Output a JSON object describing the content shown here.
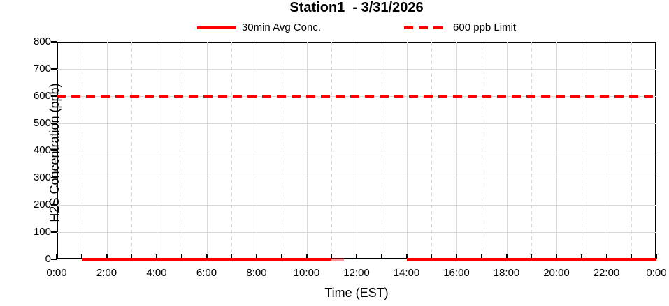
{
  "chart_data": {
    "type": "line",
    "title": "Station1  - 3/31/2026",
    "xlabel": "Time (EST)",
    "ylabel": "H2S Concentration (ppb)",
    "ylim": [
      0,
      800
    ],
    "y_tick_step": 100,
    "y_tick_labels": [
      "800",
      "700",
      "600",
      "500",
      "400",
      "300",
      "200",
      "100",
      "0"
    ],
    "xlim_hours": [
      0,
      24
    ],
    "x_tick_step_hours": 2,
    "x_tick_labels": [
      "0:00",
      "2:00",
      "4:00",
      "6:00",
      "8:00",
      "10:00",
      "12:00",
      "14:00",
      "16:00",
      "18:00",
      "20:00",
      "22:00",
      "0:00"
    ],
    "grid": {
      "horizontal_major": "solid every 100 ppb",
      "vertical_even_hours": "solid",
      "vertical_odd_hours": "dashed",
      "gridline_color": "#d9d9d9"
    },
    "legend": [
      {
        "label": "30min Avg Conc.",
        "style": "solid",
        "color": "#ff0000"
      },
      {
        "label": "600 ppb Limit",
        "style": "dashed",
        "color": "#ff0000"
      }
    ],
    "series": [
      {
        "name": "30min Avg Conc.",
        "color": "#ff0000",
        "style": "solid",
        "value_ppb": 0,
        "segments_hours": [
          {
            "start_hour": 1,
            "end_hour": 11,
            "appearance": "normal"
          },
          {
            "start_hour": 11,
            "end_hour": 11.5,
            "appearance": "faded"
          },
          {
            "start_hour": 14,
            "end_hour": 24,
            "appearance": "normal"
          }
        ]
      },
      {
        "name": "600 ppb Limit",
        "color": "#ff0000",
        "style": "dashed",
        "value_ppb": 600,
        "segments_hours": [
          {
            "start_hour": 0,
            "end_hour": 24,
            "appearance": "normal"
          }
        ]
      }
    ],
    "colors": {
      "series_red": "#ff0000",
      "axis_line": "#000000",
      "gridline": "#d9d9d9",
      "text": "#000000",
      "background": "#ffffff"
    }
  }
}
